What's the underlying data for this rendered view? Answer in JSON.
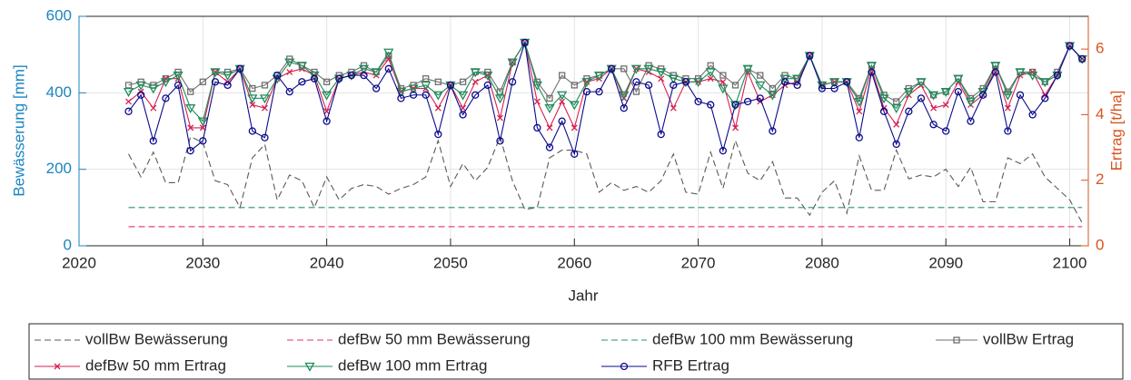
{
  "chart_data": {
    "type": "line",
    "xlabel": "Jahr",
    "ylabel": "Bewässerung [mm]",
    "y2label": "Ertrag [t/ha]",
    "xlim": [
      2020,
      2101.5
    ],
    "xticks": [
      2020,
      2030,
      2040,
      2050,
      2060,
      2070,
      2080,
      2090,
      2100
    ],
    "ylim": [
      0,
      600
    ],
    "yticks": [
      0,
      200,
      400,
      600
    ],
    "y2lim": [
      0,
      7
    ],
    "y2ticks": [
      0,
      2,
      4,
      6
    ],
    "ycolor": "#1a85c0",
    "y2color": "#d9531e",
    "grid": true,
    "legend": "bottom",
    "x": [
      2024,
      2025,
      2026,
      2027,
      2028,
      2029,
      2030,
      2031,
      2032,
      2033,
      2034,
      2035,
      2036,
      2037,
      2038,
      2039,
      2040,
      2041,
      2042,
      2043,
      2044,
      2045,
      2046,
      2047,
      2048,
      2049,
      2050,
      2051,
      2052,
      2053,
      2054,
      2055,
      2056,
      2057,
      2058,
      2059,
      2060,
      2061,
      2062,
      2063,
      2064,
      2065,
      2066,
      2067,
      2068,
      2069,
      2070,
      2071,
      2072,
      2073,
      2074,
      2075,
      2076,
      2077,
      2078,
      2079,
      2080,
      2081,
      2082,
      2083,
      2084,
      2085,
      2086,
      2087,
      2088,
      2089,
      2090,
      2091,
      2092,
      2093,
      2094,
      2095,
      2096,
      2097,
      2098,
      2099,
      2100,
      2101
    ],
    "series": [
      {
        "name": "vollBw Bewässerung",
        "color": "#5a5a5a",
        "dash": true,
        "marker": "none",
        "axis": "y",
        "values": [
          240,
          180,
          245,
          165,
          165,
          285,
          270,
          170,
          160,
          100,
          230,
          265,
          120,
          185,
          170,
          100,
          180,
          120,
          150,
          160,
          155,
          135,
          150,
          160,
          180,
          275,
          155,
          215,
          170,
          205,
          285,
          170,
          95,
          100,
          230,
          250,
          250,
          240,
          140,
          165,
          145,
          155,
          140,
          170,
          240,
          140,
          135,
          245,
          150,
          275,
          190,
          170,
          220,
          125,
          125,
          80,
          140,
          170,
          85,
          235,
          145,
          145,
          250,
          175,
          185,
          180,
          200,
          155,
          205,
          115,
          115,
          230,
          215,
          240,
          180,
          150,
          120,
          60
        ]
      },
      {
        "name": "defBw 50 mm Bewässerung",
        "color": "#e0306a",
        "dash": true,
        "marker": "none",
        "axis": "y",
        "values": [
          50,
          50,
          50,
          50,
          50,
          50,
          50,
          50,
          50,
          50,
          50,
          50,
          50,
          50,
          50,
          50,
          50,
          50,
          50,
          50,
          50,
          50,
          50,
          50,
          50,
          50,
          50,
          50,
          50,
          50,
          50,
          50,
          50,
          50,
          50,
          50,
          50,
          50,
          50,
          50,
          50,
          50,
          50,
          50,
          50,
          50,
          50,
          50,
          50,
          50,
          50,
          50,
          50,
          50,
          50,
          50,
          50,
          50,
          50,
          50,
          50,
          50,
          50,
          50,
          50,
          50,
          50,
          50,
          50,
          50,
          50,
          50,
          50,
          50,
          50,
          50,
          50,
          50
        ]
      },
      {
        "name": "defBw 100 mm Bewässerung",
        "color": "#2a9070",
        "dash": true,
        "marker": "none",
        "axis": "y",
        "values": [
          100,
          100,
          100,
          100,
          100,
          100,
          100,
          100,
          100,
          100,
          100,
          100,
          100,
          100,
          100,
          100,
          100,
          100,
          100,
          100,
          100,
          100,
          100,
          100,
          100,
          100,
          100,
          100,
          100,
          100,
          100,
          100,
          100,
          100,
          100,
          100,
          100,
          100,
          100,
          100,
          100,
          100,
          100,
          100,
          100,
          100,
          100,
          100,
          100,
          100,
          100,
          100,
          100,
          100,
          100,
          100,
          100,
          100,
          100,
          100,
          100,
          100,
          100,
          100,
          100,
          100,
          100,
          100,
          100,
          100,
          100,
          100,
          100,
          100,
          100,
          100,
          100,
          100
        ]
      },
      {
        "name": "vollBw Ertrag",
        "color": "#707070",
        "dash": false,
        "marker": "square",
        "axis": "y2",
        "values": [
          4.9,
          5.0,
          4.9,
          5.1,
          5.3,
          4.7,
          5.0,
          5.3,
          5.3,
          5.4,
          4.8,
          4.9,
          5.2,
          5.7,
          5.5,
          5.3,
          5.0,
          5.2,
          5.3,
          5.5,
          5.3,
          5.8,
          4.8,
          4.9,
          5.1,
          5.0,
          4.9,
          5.0,
          5.3,
          5.3,
          4.7,
          5.6,
          6.2,
          5.0,
          4.5,
          5.2,
          4.9,
          5.1,
          5.2,
          5.4,
          5.4,
          4.7,
          5.5,
          5.4,
          5.2,
          5.1,
          5.1,
          5.5,
          5.2,
          4.9,
          5.4,
          5.2,
          4.8,
          5.2,
          5.1,
          5.8,
          4.9,
          5.0,
          5.0,
          4.5,
          5.5,
          4.6,
          4.4,
          4.8,
          5.0,
          4.6,
          4.7,
          5.1,
          4.5,
          4.8,
          5.5,
          4.7,
          5.3,
          5.3,
          5.0,
          5.3,
          6.1,
          5.7
        ]
      },
      {
        "name": "defBw 50 mm Ertrag",
        "color": "#d62050",
        "dash": false,
        "marker": "x",
        "axis": "y2",
        "values": [
          4.4,
          4.7,
          4.2,
          5.1,
          5.1,
          3.6,
          3.6,
          5.3,
          5.0,
          5.4,
          4.3,
          4.2,
          5.1,
          5.3,
          5.4,
          5.2,
          4.1,
          5.1,
          5.2,
          5.3,
          5.2,
          5.7,
          4.7,
          4.8,
          4.8,
          4.2,
          4.9,
          4.2,
          5.0,
          5.2,
          3.9,
          5.6,
          6.2,
          4.4,
          3.6,
          4.4,
          3.6,
          5.0,
          5.1,
          5.4,
          4.5,
          5.4,
          5.3,
          5.1,
          4.2,
          5.0,
          5.0,
          5.1,
          5.0,
          3.6,
          5.3,
          4.4,
          4.6,
          4.9,
          5.0,
          5.8,
          4.9,
          5.0,
          5.0,
          4.1,
          5.4,
          4.2,
          3.7,
          4.6,
          4.9,
          4.2,
          4.3,
          5.0,
          4.3,
          4.6,
          5.4,
          4.2,
          5.2,
          5.3,
          4.6,
          5.2,
          6.1,
          5.7
        ]
      },
      {
        "name": "defBw 100 mm Ertrag",
        "color": "#1e8c5a",
        "dash": false,
        "marker": "triangle",
        "axis": "y2",
        "values": [
          4.7,
          4.9,
          4.8,
          5.0,
          5.2,
          4.2,
          3.8,
          5.3,
          5.2,
          5.4,
          4.5,
          4.5,
          5.1,
          5.6,
          5.5,
          5.2,
          4.6,
          5.1,
          5.2,
          5.4,
          5.3,
          5.9,
          4.7,
          4.8,
          4.9,
          4.6,
          4.9,
          4.6,
          5.3,
          5.2,
          4.5,
          5.6,
          6.2,
          4.9,
          4.2,
          4.6,
          4.3,
          5.0,
          5.2,
          5.4,
          4.6,
          5.4,
          5.4,
          5.3,
          5.1,
          5.0,
          5.0,
          5.3,
          4.8,
          4.3,
          5.4,
          4.9,
          4.6,
          5.1,
          5.1,
          5.8,
          4.9,
          5.0,
          5.0,
          4.4,
          5.5,
          4.5,
          4.2,
          4.7,
          5.0,
          4.6,
          4.7,
          5.1,
          4.4,
          4.7,
          5.5,
          4.6,
          5.3,
          5.2,
          5.0,
          5.2,
          6.1,
          5.7
        ]
      },
      {
        "name": "RFB Ertrag",
        "color": "#0a0a8c",
        "dash": false,
        "marker": "circle",
        "axis": "y2",
        "values": [
          4.1,
          4.6,
          3.2,
          4.5,
          4.9,
          2.9,
          3.2,
          5.0,
          4.9,
          5.4,
          3.5,
          3.3,
          5.2,
          4.7,
          5.0,
          5.1,
          3.8,
          5.1,
          5.2,
          5.2,
          4.8,
          5.4,
          4.5,
          4.6,
          4.6,
          3.4,
          4.9,
          4.0,
          4.6,
          4.9,
          3.2,
          5.0,
          6.2,
          3.6,
          3.0,
          3.8,
          2.8,
          4.7,
          4.7,
          5.4,
          4.2,
          5.0,
          4.9,
          3.4,
          4.9,
          5.0,
          4.4,
          4.3,
          2.9,
          4.3,
          4.4,
          4.5,
          3.5,
          5.0,
          4.9,
          5.8,
          4.8,
          4.8,
          5.0,
          3.3,
          5.3,
          4.1,
          3.1,
          4.1,
          4.5,
          3.7,
          3.5,
          4.7,
          3.8,
          4.6,
          5.3,
          3.5,
          4.6,
          4.0,
          4.5,
          5.2,
          6.1,
          5.7
        ]
      }
    ]
  }
}
